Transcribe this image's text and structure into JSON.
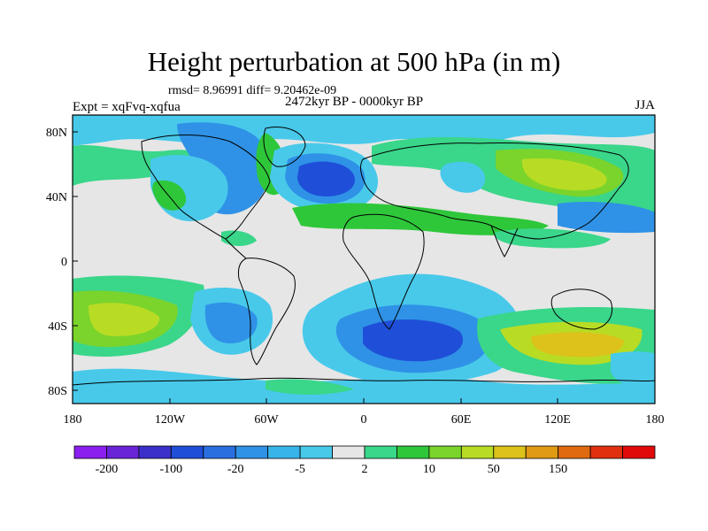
{
  "title": "Height perturbation at 500 hPa (in m)",
  "stats": "rmsd= 8.96991 diff= 9.20462e-09",
  "left_label": "Expt = xqFvq-xqfua",
  "center_label": "2472kyr BP - 0000kyr BP",
  "right_label": "JJA",
  "lat_ticks": [
    "80N",
    "40N",
    "0",
    "40S",
    "80S"
  ],
  "lon_ticks": [
    "180",
    "120W",
    "60W",
    "0",
    "60E",
    "120E",
    "180"
  ],
  "colorbar": {
    "colors": [
      "#8a1ff0",
      "#6a24d8",
      "#3b30c9",
      "#1f4fd8",
      "#2a6fe0",
      "#2f92e6",
      "#38b4ea",
      "#48c9ea",
      "#e6e6e6",
      "#3ad68a",
      "#2fc73a",
      "#7ad42c",
      "#b8dc24",
      "#dcc21a",
      "#e09a14",
      "#e06a10",
      "#e03010",
      "#e00a0a"
    ],
    "labels": [
      "-200",
      "-100",
      "-20",
      "-5",
      "2",
      "10",
      "50",
      "150"
    ]
  },
  "palette": {
    "background": "#e6e6e6",
    "ocean_frame": "#ffffff",
    "blue_dark": "#1f4fd8",
    "blue": "#2f92e6",
    "cyan": "#48c9ea",
    "teal": "#3ad68a",
    "green": "#2fc73a",
    "yellow_green": "#b8dc24",
    "yellow": "#dcc21a",
    "coast": "#000000"
  }
}
